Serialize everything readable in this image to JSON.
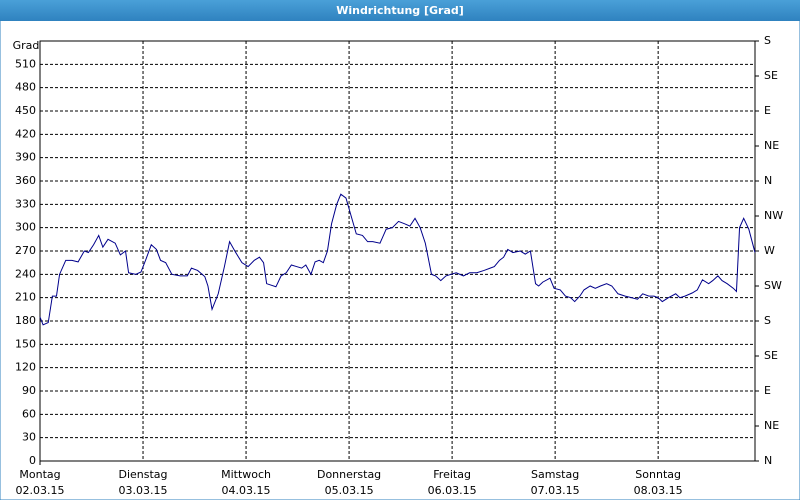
{
  "chart_data": {
    "type": "line",
    "title": "Windrichtung [Grad]",
    "y_label": "Grad",
    "x": [
      0,
      0.03,
      0.08,
      0.12,
      0.16,
      0.19,
      0.25,
      0.31,
      0.37,
      0.43,
      0.47,
      0.52,
      0.57,
      0.61,
      0.66,
      0.73,
      0.78,
      0.83,
      0.86,
      0.93,
      0.98,
      1.03,
      1.08,
      1.13,
      1.17,
      1.22,
      1.28,
      1.36,
      1.43,
      1.47,
      1.53,
      1.6,
      1.63,
      1.67,
      1.73,
      1.79,
      1.84,
      1.9,
      1.96,
      2.02,
      2.08,
      2.13,
      2.17,
      2.2,
      2.29,
      2.34,
      2.39,
      2.44,
      2.49,
      2.54,
      2.58,
      2.63,
      2.67,
      2.71,
      2.75,
      2.79,
      2.83,
      2.88,
      2.92,
      2.97,
      3.02,
      3.07,
      3.13,
      3.18,
      3.23,
      3.3,
      3.36,
      3.42,
      3.48,
      3.54,
      3.59,
      3.64,
      3.69,
      3.74,
      3.8,
      3.84,
      3.89,
      3.94,
      3.99,
      4.04,
      4.11,
      4.17,
      4.24,
      4.31,
      4.37,
      4.41,
      4.46,
      4.5,
      4.54,
      4.59,
      4.66,
      4.71,
      4.76,
      4.81,
      4.84,
      4.88,
      4.95,
      4.99,
      5.05,
      5.1,
      5.15,
      5.19,
      5.24,
      5.28,
      5.34,
      5.39,
      5.44,
      5.5,
      5.55,
      5.61,
      5.68,
      5.74,
      5.8,
      5.85,
      5.91,
      5.96,
      6.0,
      6.04,
      6.1,
      6.17,
      6.21,
      6.26,
      6.33,
      6.38,
      6.43,
      6.49,
      6.53,
      6.58,
      6.62,
      6.67,
      6.73,
      6.76,
      6.79,
      6.83,
      6.88,
      6.94
    ],
    "series": [
      {
        "name": "Windrichtung",
        "color": "#00008b",
        "values": [
          185,
          175,
          178,
          212,
          212,
          240,
          258,
          258,
          256,
          270,
          268,
          278,
          290,
          275,
          285,
          280,
          265,
          270,
          242,
          240,
          243,
          260,
          278,
          272,
          258,
          255,
          240,
          238,
          238,
          248,
          245,
          237,
          225,
          195,
          215,
          250,
          282,
          268,
          255,
          250,
          258,
          262,
          255,
          228,
          224,
          238,
          242,
          252,
          250,
          248,
          252,
          240,
          256,
          258,
          255,
          270,
          305,
          330,
          343,
          338,
          315,
          292,
          290,
          282,
          282,
          280,
          298,
          300,
          308,
          305,
          302,
          312,
          300,
          280,
          240,
          238,
          232,
          238,
          240,
          242,
          238,
          242,
          242,
          245,
          248,
          250,
          258,
          262,
          272,
          268,
          270,
          266,
          270,
          228,
          225,
          230,
          235,
          222,
          220,
          212,
          210,
          205,
          212,
          220,
          225,
          222,
          225,
          228,
          225,
          215,
          212,
          210,
          208,
          215,
          212,
          212,
          210,
          205,
          210,
          215,
          210,
          212,
          216,
          220,
          233,
          228,
          232,
          238,
          232,
          228,
          222,
          218,
          300,
          312,
          298,
          268
        ]
      }
    ],
    "xlim": [
      0,
      6.94
    ],
    "xticks": [
      {
        "value": 0,
        "label": "Montag",
        "sublabel": "02.03.15"
      },
      {
        "value": 1,
        "label": "Dienstag",
        "sublabel": "03.03.15"
      },
      {
        "value": 2,
        "label": "Mittwoch",
        "sublabel": "04.03.15"
      },
      {
        "value": 3,
        "label": "Donnerstag",
        "sublabel": "05.03.15"
      },
      {
        "value": 4,
        "label": "Freitag",
        "sublabel": "06.03.15"
      },
      {
        "value": 5,
        "label": "Samstag",
        "sublabel": "07.03.15"
      },
      {
        "value": 6,
        "label": "Sonntag",
        "sublabel": "08.03.15"
      }
    ],
    "ylim": [
      0,
      540
    ],
    "yticks": [
      0,
      30,
      60,
      90,
      120,
      150,
      180,
      210,
      240,
      270,
      300,
      330,
      360,
      390,
      420,
      450,
      480,
      510
    ],
    "y2lim": [
      0,
      540
    ],
    "y2ticks": [
      {
        "value": 0,
        "label": "N"
      },
      {
        "value": 45,
        "label": "NE"
      },
      {
        "value": 90,
        "label": "E"
      },
      {
        "value": 135,
        "label": "SE"
      },
      {
        "value": 180,
        "label": "S"
      },
      {
        "value": 225,
        "label": "SW"
      },
      {
        "value": 270,
        "label": "W"
      },
      {
        "value": 315,
        "label": "NW"
      },
      {
        "value": 360,
        "label": "N"
      },
      {
        "value": 405,
        "label": "NE"
      },
      {
        "value": 450,
        "label": "E"
      },
      {
        "value": 495,
        "label": "SE"
      },
      {
        "value": 540,
        "label": "S"
      }
    ],
    "grid": true
  }
}
